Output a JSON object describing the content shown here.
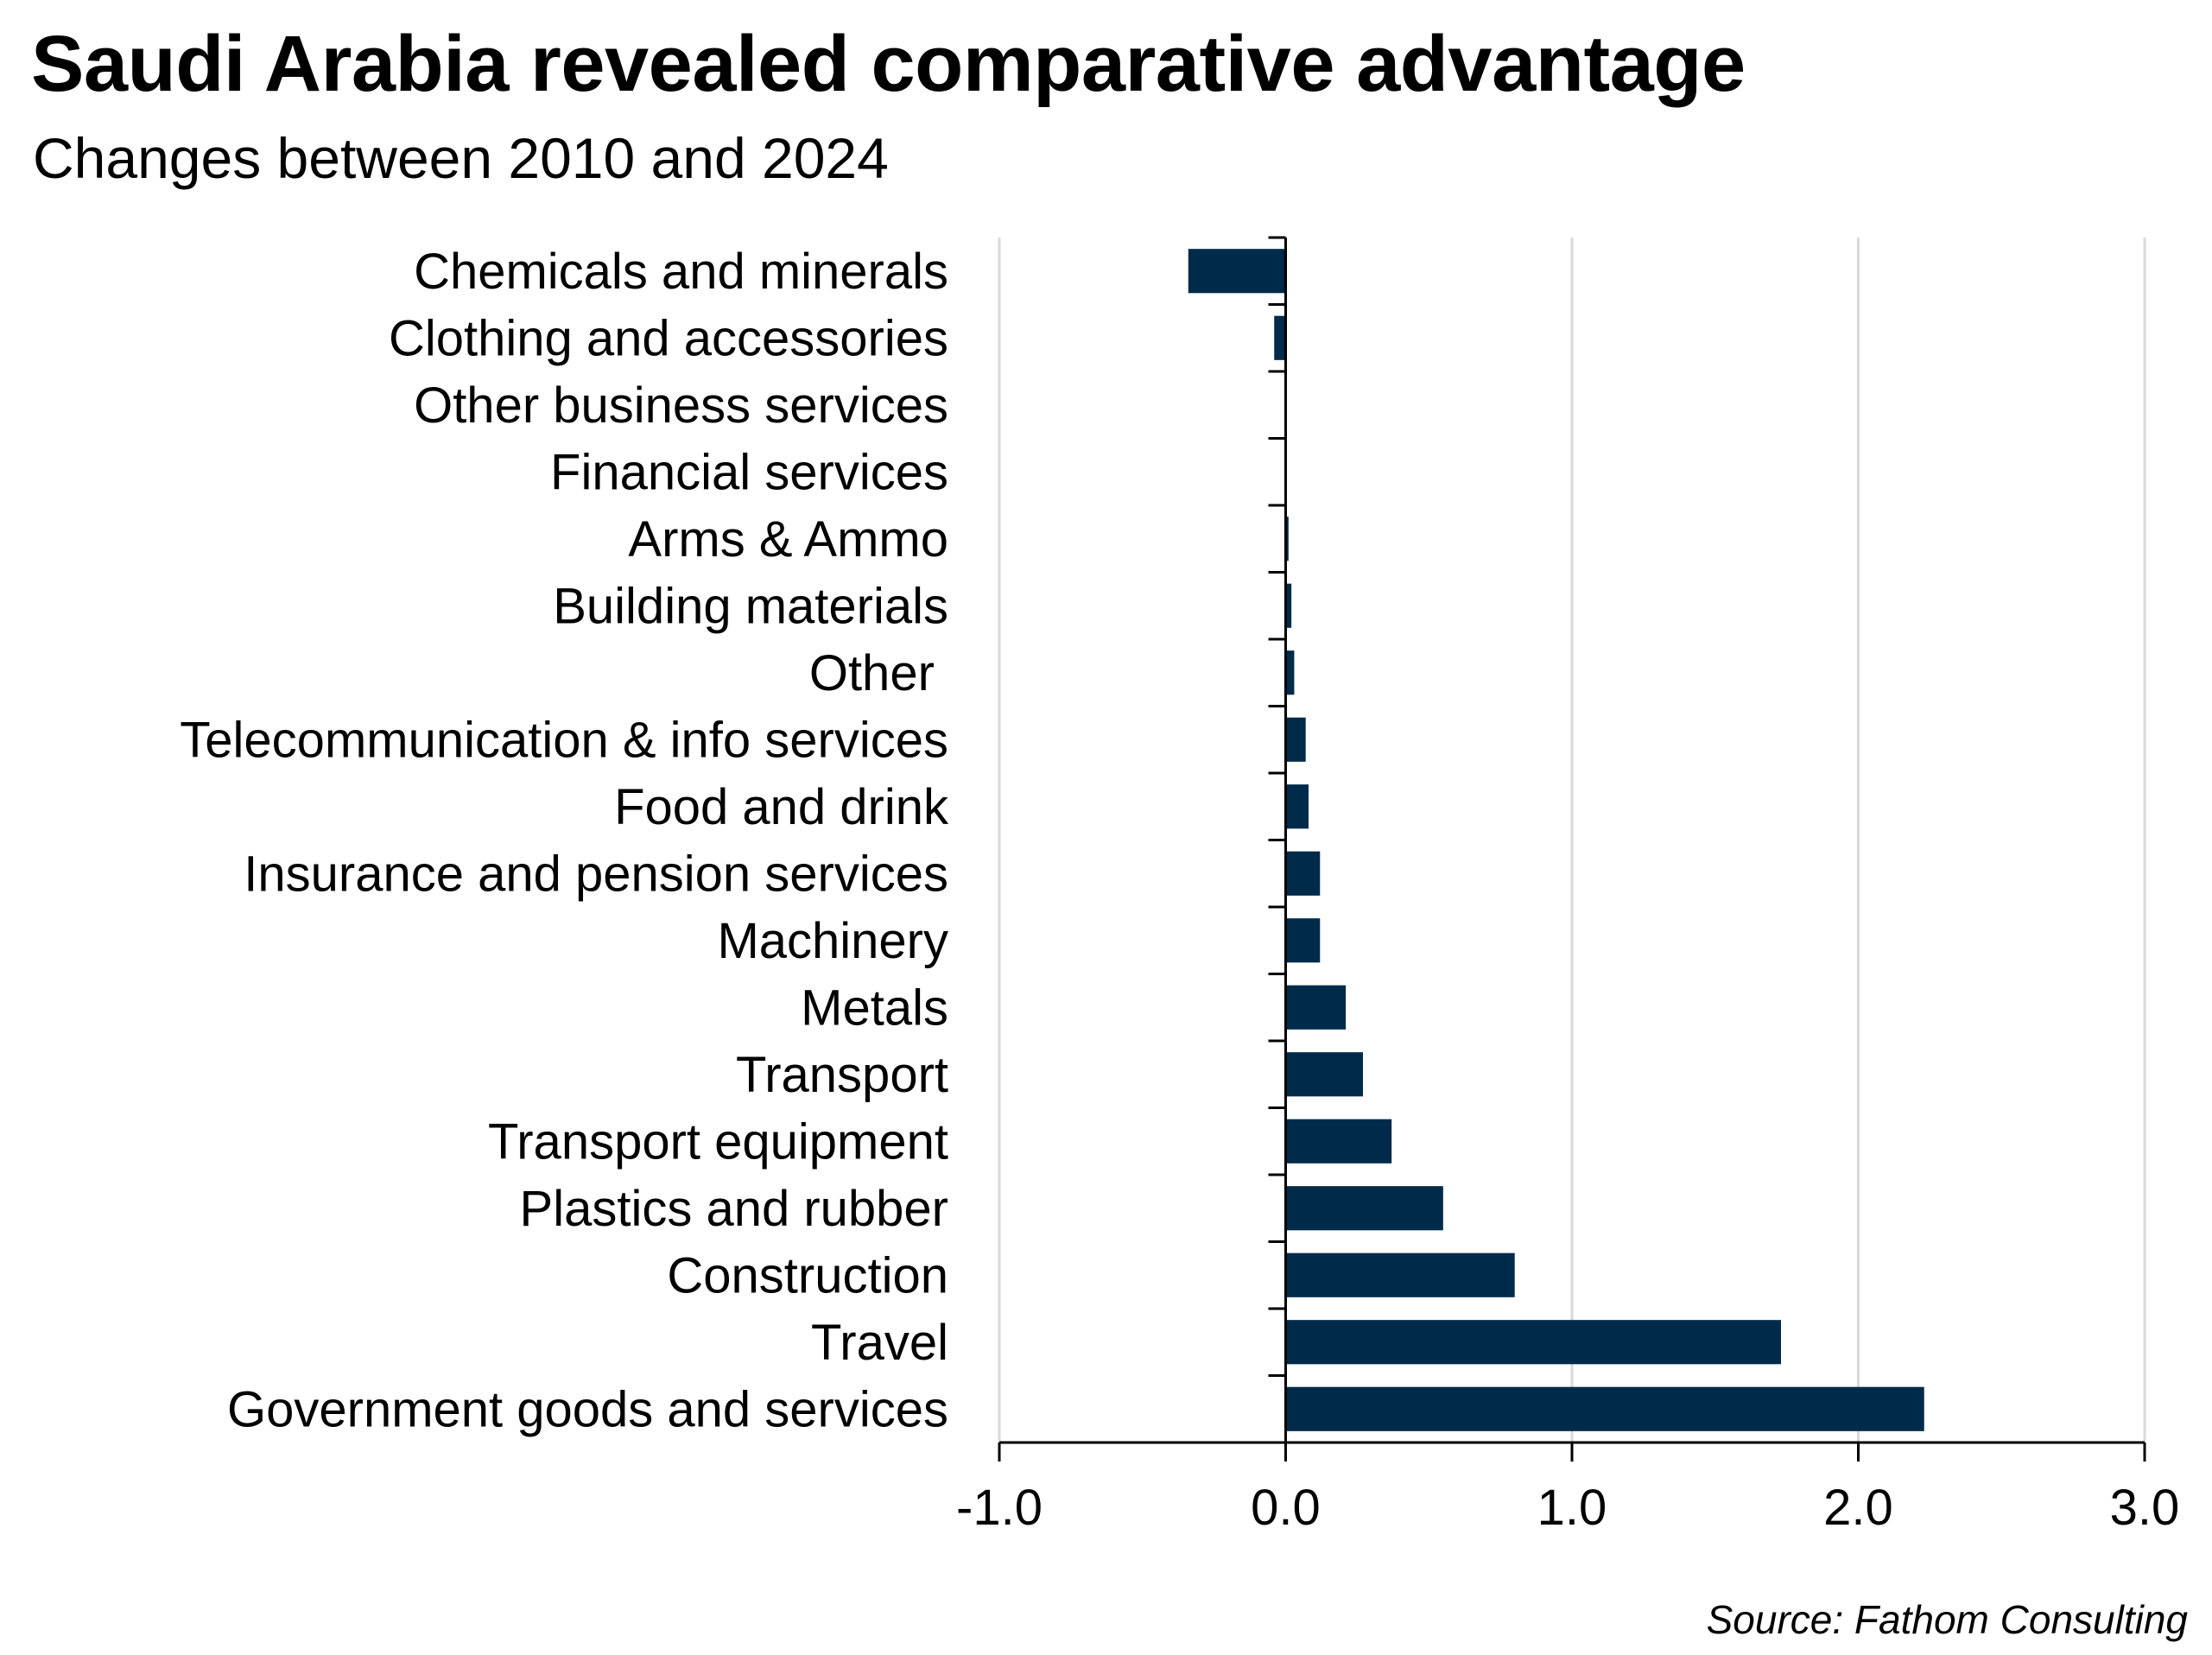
{
  "chart_data": {
    "type": "bar",
    "orientation": "horizontal",
    "title": "Saudi Arabia revealed comparative advantage",
    "subtitle": "Changes between 2010 and 2024",
    "source": "Source: Fathom Consulting",
    "categories": [
      "Chemicals and minerals",
      "Clothing and accessories",
      "Other business services",
      "Financial services",
      "Arms & Ammo",
      "Building materials",
      "Other ",
      "Telecommunication & info services",
      "Food and drink",
      "Insurance and pension services",
      "Machinery",
      "Metals",
      "Transport",
      "Transport equipment",
      "Plastics and rubber",
      "Construction",
      "Travel",
      "Government goods and services"
    ],
    "values": [
      -0.34,
      -0.04,
      0.0,
      0.0,
      0.01,
      0.02,
      0.03,
      0.07,
      0.08,
      0.12,
      0.12,
      0.21,
      0.27,
      0.37,
      0.55,
      0.8,
      1.73,
      2.23
    ],
    "xlim": [
      -1.0,
      3.0
    ],
    "xticks": [
      "-1.0",
      "0.0",
      "1.0",
      "2.0",
      "3.0"
    ],
    "xlabel": "",
    "ylabel": "",
    "grid": "vertical",
    "legend": "none",
    "bar_color": "#002A4A",
    "grid_color": "#D9D9D9"
  }
}
